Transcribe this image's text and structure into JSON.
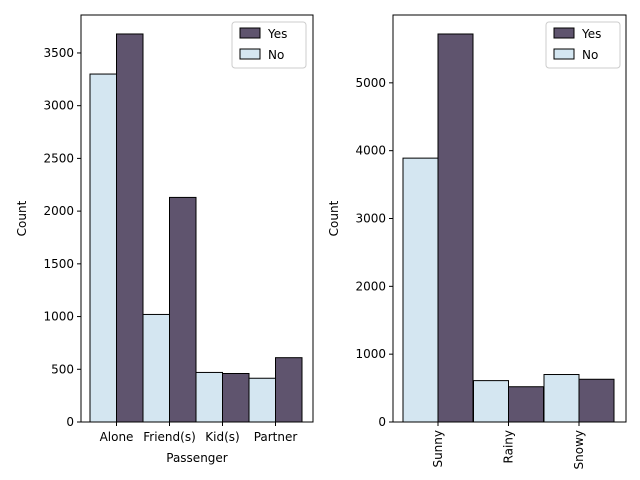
{
  "chart_data": [
    {
      "type": "bar",
      "xlabel": "Passenger",
      "ylabel": "Count",
      "categories": [
        "Alone",
        "Friend(s)",
        "Kid(s)",
        "Partner"
      ],
      "series": [
        {
          "name": "No",
          "values": [
            3300,
            1020,
            470,
            415
          ],
          "color": "#d4e6f1"
        },
        {
          "name": "Yes",
          "values": [
            3680,
            2130,
            460,
            610
          ],
          "color": "#5f546e"
        }
      ],
      "ylim": [
        0,
        3860
      ],
      "yticks": [
        0,
        500,
        1000,
        1500,
        2000,
        2500,
        3000,
        3500
      ],
      "legend": {
        "position": "top-right",
        "order": [
          "Yes",
          "No"
        ]
      },
      "grid": false
    },
    {
      "type": "bar",
      "xlabel": "",
      "ylabel": "Count",
      "categories": [
        "Sunny",
        "Rainy",
        "Snowy"
      ],
      "series": [
        {
          "name": "No",
          "values": [
            3890,
            610,
            700
          ],
          "color": "#d4e6f1"
        },
        {
          "name": "Yes",
          "values": [
            5720,
            520,
            630
          ],
          "color": "#5f546e"
        }
      ],
      "ylim": [
        0,
        6000
      ],
      "yticks": [
        0,
        1000,
        2000,
        3000,
        4000,
        5000
      ],
      "xtick_rotation": 90,
      "legend": {
        "position": "top-right",
        "order": [
          "Yes",
          "No"
        ]
      },
      "grid": false
    }
  ]
}
